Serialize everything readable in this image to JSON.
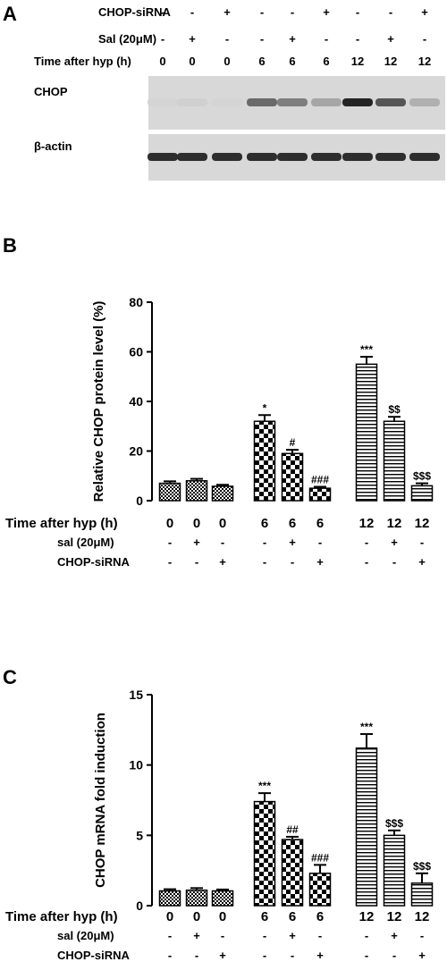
{
  "panel_labels": {
    "a": "A",
    "b": "B",
    "c": "C"
  },
  "blot": {
    "rows": [
      {
        "label": "CHOP-siRNA",
        "values": [
          "-",
          "-",
          "+",
          "-",
          "-",
          "+",
          "-",
          "-",
          "+"
        ]
      },
      {
        "label": "Sal (20μM)",
        "values": [
          "-",
          "+",
          "-",
          "-",
          "+",
          "-",
          "-",
          "+",
          "-"
        ]
      },
      {
        "label": "Time after hyp (h)",
        "values": [
          "0",
          "0",
          "0",
          "6",
          "6",
          "6",
          "12",
          "12",
          "12"
        ]
      }
    ],
    "bands": [
      {
        "label": "CHOP",
        "intensity": [
          0.02,
          0.04,
          0.02,
          0.55,
          0.45,
          0.25,
          0.9,
          0.65,
          0.2
        ]
      },
      {
        "label": "β-actin",
        "intensity": [
          0.85,
          0.85,
          0.85,
          0.85,
          0.85,
          0.85,
          0.85,
          0.85,
          0.85
        ]
      }
    ]
  },
  "conditions": {
    "time_label": "Time after hyp (h)",
    "time_values": [
      "0",
      "0",
      "0",
      "6",
      "6",
      "6",
      "12",
      "12",
      "12"
    ],
    "sal_label": "sal (20μM)",
    "sal_values": [
      "-",
      "+",
      "-",
      "-",
      "+",
      "-",
      "-",
      "+",
      "-"
    ],
    "sirna_label": "CHOP-siRNA",
    "sirna_values": [
      "-",
      "-",
      "+",
      "-",
      "-",
      "+",
      "-",
      "-",
      "+"
    ]
  },
  "chart_data": [
    {
      "type": "bar",
      "ylabel": "Relative CHOP protein  level (%)",
      "ylim": [
        0,
        80
      ],
      "yticks": [
        0,
        20,
        40,
        60,
        80
      ],
      "values": [
        7,
        8,
        5.8,
        32,
        19,
        5,
        55,
        32,
        6
      ],
      "errors": [
        0.8,
        0.8,
        0.6,
        2.5,
        1.5,
        0.6,
        3,
        1.8,
        1.0
      ],
      "annotations": [
        "",
        "",
        "",
        "*",
        "#",
        "###",
        "***",
        "$$",
        "$$$"
      ]
    },
    {
      "type": "bar",
      "ylabel": "CHOP mRNA fold induction",
      "ylim": [
        0,
        15
      ],
      "yticks": [
        0,
        5,
        10,
        15
      ],
      "values": [
        1.05,
        1.1,
        1.05,
        7.4,
        4.7,
        2.3,
        11.2,
        5.0,
        1.6
      ],
      "errors": [
        0.12,
        0.15,
        0.1,
        0.6,
        0.2,
        0.6,
        1.0,
        0.35,
        0.7
      ],
      "annotations": [
        "",
        "",
        "",
        "***",
        "##",
        "###",
        "***",
        "$$$",
        "$$$"
      ]
    }
  ]
}
